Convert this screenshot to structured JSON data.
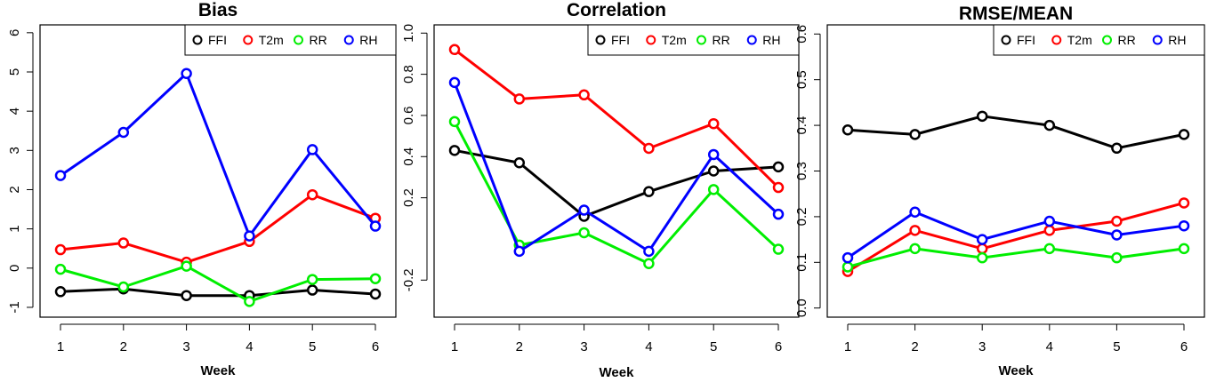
{
  "chart_data": [
    {
      "type": "line",
      "title": "Bias",
      "xlabel": "Week",
      "ylabel": "",
      "x": [
        1,
        2,
        3,
        4,
        5,
        6
      ],
      "yticks": [
        -1,
        0,
        1,
        2,
        3,
        4,
        5,
        6
      ],
      "ylim": [
        -1.25,
        6.2
      ],
      "series": [
        {
          "name": "FFI",
          "color": "#000000",
          "values": [
            -0.6,
            -0.53,
            -0.7,
            -0.7,
            -0.56,
            -0.66
          ]
        },
        {
          "name": "T2m",
          "color": "#ff0000",
          "values": [
            0.47,
            0.64,
            0.15,
            0.68,
            1.87,
            1.27
          ]
        },
        {
          "name": "RR",
          "color": "#00ee00",
          "values": [
            -0.03,
            -0.48,
            0.05,
            -0.85,
            -0.29,
            -0.27
          ]
        },
        {
          "name": "RH",
          "color": "#0000ff",
          "values": [
            2.36,
            3.46,
            4.96,
            0.82,
            3.02,
            1.07
          ]
        }
      ],
      "legend": "top-right"
    },
    {
      "type": "line",
      "title": "Correlation",
      "xlabel": "Week",
      "ylabel": "",
      "x": [
        1,
        2,
        3,
        4,
        5,
        6
      ],
      "yticks": [
        "-0.2",
        "0.2",
        "0.4",
        "0.6",
        "0.8",
        "1.0"
      ],
      "ytick_values": [
        -0.2,
        0.2,
        0.4,
        0.6,
        0.8,
        1.0
      ],
      "ylim": [
        -0.38,
        1.04
      ],
      "series": [
        {
          "name": "FFI",
          "color": "#000000",
          "values": [
            0.43,
            0.37,
            0.11,
            0.23,
            0.33,
            0.35
          ]
        },
        {
          "name": "T2m",
          "color": "#ff0000",
          "values": [
            0.92,
            0.68,
            0.7,
            0.44,
            0.56,
            0.25
          ]
        },
        {
          "name": "RR",
          "color": "#00ee00",
          "values": [
            0.57,
            -0.03,
            0.03,
            -0.12,
            0.24,
            -0.05
          ]
        },
        {
          "name": "RH",
          "color": "#0000ff",
          "values": [
            0.76,
            -0.06,
            0.14,
            -0.06,
            0.41,
            0.12
          ]
        }
      ],
      "legend": "top-right"
    },
    {
      "type": "line",
      "title": "RMSE/MEAN",
      "xlabel": "Week",
      "ylabel": "",
      "x": [
        1,
        2,
        3,
        4,
        5,
        6
      ],
      "yticks": [
        "0.0",
        "0.1",
        "0.2",
        "0.3",
        "0.4",
        "0.5",
        "0.6"
      ],
      "ytick_values": [
        0.0,
        0.1,
        0.2,
        0.3,
        0.4,
        0.5,
        0.6
      ],
      "ylim": [
        -0.02,
        0.62
      ],
      "series": [
        {
          "name": "FFI",
          "color": "#000000",
          "values": [
            0.39,
            0.38,
            0.42,
            0.4,
            0.35,
            0.38
          ]
        },
        {
          "name": "T2m",
          "color": "#ff0000",
          "values": [
            0.08,
            0.17,
            0.13,
            0.17,
            0.19,
            0.23
          ]
        },
        {
          "name": "RR",
          "color": "#00ee00",
          "values": [
            0.09,
            0.13,
            0.11,
            0.13,
            0.11,
            0.13
          ]
        },
        {
          "name": "RH",
          "color": "#0000ff",
          "values": [
            0.11,
            0.21,
            0.15,
            0.19,
            0.16,
            0.18
          ]
        }
      ],
      "legend": "top-right"
    }
  ]
}
